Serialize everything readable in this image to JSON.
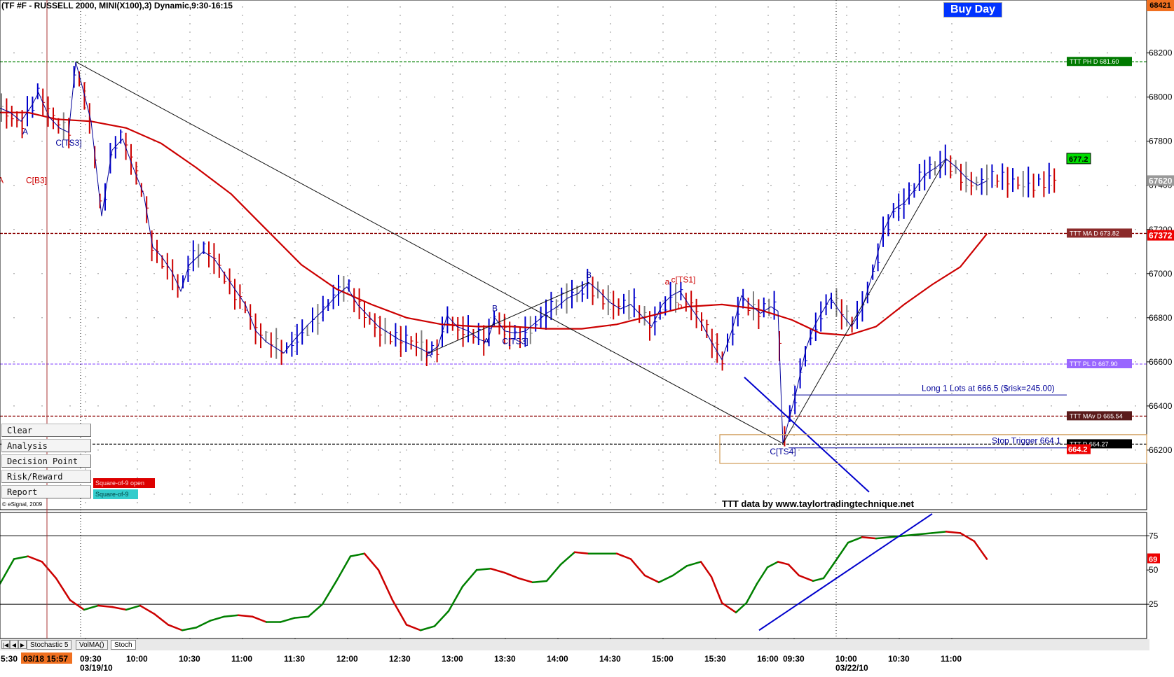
{
  "header": {
    "symbol_title": "(TF #F - RUSSELL 2000, MINI(X100),3) Dynamic,9:30-16:15",
    "buy_day": "Buy Day",
    "top_right_price": "68421",
    "credit": "TTT data by www.taylortradingtechnique.net",
    "copyright": "© eSignal, 2009"
  },
  "colors": {
    "ma_line": "#cc0000",
    "bar_up": "#0000cc",
    "bar_down": "#cc0000",
    "bar_neutral": "#808080",
    "ph_line": "#008000",
    "pl_line": "#9966ff",
    "ma_d_line": "#8b0000",
    "buy_day_bg": "#0033ff",
    "stoch_up": "#008000",
    "stoch_down": "#cc0000"
  },
  "price_axis": {
    "ticks": [
      "68200",
      "68000",
      "67800",
      "67620",
      "67400",
      "67200",
      "67000",
      "66800",
      "66600",
      "66400",
      "66200"
    ],
    "current_price": "67620",
    "current_price_2": "67372"
  },
  "levels": [
    {
      "label": "TTT PH D 681.60",
      "value": 681.6,
      "color": "#008000",
      "bg": "#007a00",
      "style": "dashed"
    },
    {
      "label": "TTT MA D 673.82",
      "value": 673.82,
      "color": "#8b0000",
      "bg": "#8b2a2a",
      "style": "dashed"
    },
    {
      "label": "TTT PL D 667.90",
      "value": 667.9,
      "color": "#9966ff",
      "bg": "#9966ff",
      "style": "dashed"
    },
    {
      "label": "TTT MAv D 665.54",
      "value": 665.54,
      "color": "#8b0000",
      "bg": "#5a1a1a",
      "style": "dashed"
    },
    {
      "label": "TTT D 664.27",
      "value": 664.27,
      "color": "#000000",
      "bg": "#000000",
      "style": "dashed"
    }
  ],
  "price_tags": {
    "green_tag": "677.2",
    "red_tag": "664.2"
  },
  "annotations": [
    {
      "text": "A",
      "color": "#cc0000",
      "x": 1,
      "y": 676.1
    },
    {
      "text": "C[B3]",
      "color": "#cc0000",
      "x": 52,
      "y": 676.1
    },
    {
      "text": "A",
      "color": "#000099",
      "x": 36,
      "y": 678.3
    },
    {
      "text": "C[TS3]",
      "color": "#000099",
      "x": 98,
      "y": 677.8
    },
    {
      "text": "A",
      "color": "#000099",
      "x": 612,
      "y": 668.2
    },
    {
      "text": "B",
      "color": "#000099",
      "x": 706,
      "y": 670.3
    },
    {
      "text": "A",
      "color": "#000099",
      "x": 694,
      "y": 668.8
    },
    {
      "text": "C[TS3]",
      "color": "#000099",
      "x": 735,
      "y": 668.8
    },
    {
      "text": "B",
      "color": "#000099",
      "x": 840,
      "y": 671.8
    },
    {
      "text": "a",
      "color": "#cc0000",
      "x": 952,
      "y": 671.5
    },
    {
      "text": "c[TS1]",
      "color": "#cc0000",
      "x": 975,
      "y": 671.6
    },
    {
      "text": "b",
      "color": "#cc0000",
      "x": 970,
      "y": 670.4
    },
    {
      "text": "C[TS4]",
      "color": "#000099",
      "x": 1117,
      "y": 663.8
    }
  ],
  "trade_notes": {
    "long_entry": "Long 1 Lots at 666.5 ($risk=245.00)",
    "stop_trigger": "Stop Trigger 664.1"
  },
  "buttons": [
    {
      "label": "Clear"
    },
    {
      "label": "Analysis"
    },
    {
      "label": "Decision Point"
    },
    {
      "label": "Risk/Reward"
    },
    {
      "label": "Report"
    }
  ],
  "square_tags": {
    "sq9_open": "Square-of-9 open",
    "sq9": "Square-of-9"
  },
  "stoch_axis": {
    "ticks": [
      "75",
      "50",
      "25"
    ],
    "current": "69"
  },
  "tabs": [
    {
      "label": "Stochastic 5"
    },
    {
      "label": "VolMA()"
    },
    {
      "label": "Stoch"
    }
  ],
  "time_axis": {
    "left_partial": "5:30",
    "cursor_time": "03/18 15:57",
    "date1": "03/19/10",
    "date2": "03/22/10"
  },
  "chart_data": {
    "type": "bar",
    "title": "(TF #F - RUSSELL 2000, MINI(X100),3) Dynamic,9:30-16:15",
    "x_ticks": [
      {
        "label": "09:30",
        "x": 122
      },
      {
        "label": "10:00",
        "x": 196
      },
      {
        "label": "10:30",
        "x": 271
      },
      {
        "label": "11:00",
        "x": 346
      },
      {
        "label": "11:30",
        "x": 421
      },
      {
        "label": "12:00",
        "x": 496
      },
      {
        "label": "12:30",
        "x": 571
      },
      {
        "label": "13:00",
        "x": 646
      },
      {
        "label": "13:30",
        "x": 721
      },
      {
        "label": "14:00",
        "x": 796
      },
      {
        "label": "14:30",
        "x": 871
      },
      {
        "label": "15:00",
        "x": 946
      },
      {
        "label": "15:30",
        "x": 1021
      },
      {
        "label": "16:00",
        "x": 1096
      },
      {
        "label": "09:30",
        "x": 1133
      },
      {
        "label": "10:00",
        "x": 1208
      },
      {
        "label": "10:30",
        "x": 1283
      },
      {
        "label": "11:00",
        "x": 1358
      }
    ],
    "ylim": [
      661.3,
      684.4
    ],
    "price_path": [
      [
        0,
        679.5
      ],
      [
        15,
        679.3
      ],
      [
        30,
        678.9
      ],
      [
        45,
        679.6
      ],
      [
        55,
        680.2
      ],
      [
        70,
        679.1
      ],
      [
        85,
        678.6
      ],
      [
        98,
        678.4
      ],
      [
        108,
        681.6
      ],
      [
        118,
        680.4
      ],
      [
        130,
        678.9
      ],
      [
        145,
        674.6
      ],
      [
        160,
        677.6
      ],
      [
        175,
        678.1
      ],
      [
        190,
        676.8
      ],
      [
        205,
        675.6
      ],
      [
        218,
        673.2
      ],
      [
        230,
        672.8
      ],
      [
        245,
        672.1
      ],
      [
        258,
        671.2
      ],
      [
        270,
        672.4
      ],
      [
        290,
        673.0
      ],
      [
        305,
        672.7
      ],
      [
        320,
        672.0
      ],
      [
        335,
        671.3
      ],
      [
        350,
        670.6
      ],
      [
        365,
        669.4
      ],
      [
        380,
        668.9
      ],
      [
        395,
        668.6
      ],
      [
        405,
        668.4
      ],
      [
        420,
        669.0
      ],
      [
        440,
        669.7
      ],
      [
        460,
        670.3
      ],
      [
        480,
        671.0
      ],
      [
        495,
        671.4
      ],
      [
        510,
        670.6
      ],
      [
        525,
        670.1
      ],
      [
        540,
        669.6
      ],
      [
        555,
        669.3
      ],
      [
        570,
        669.0
      ],
      [
        585,
        668.8
      ],
      [
        600,
        668.6
      ],
      [
        612,
        668.4
      ],
      [
        625,
        668.7
      ],
      [
        638,
        670.1
      ],
      [
        652,
        669.6
      ],
      [
        668,
        669.4
      ],
      [
        685,
        669.0
      ],
      [
        695,
        668.9
      ],
      [
        706,
        670.0
      ],
      [
        720,
        669.4
      ],
      [
        735,
        669.3
      ],
      [
        750,
        669.4
      ],
      [
        765,
        669.8
      ],
      [
        780,
        670.2
      ],
      [
        795,
        670.5
      ],
      [
        810,
        670.9
      ],
      [
        825,
        671.1
      ],
      [
        840,
        671.6
      ],
      [
        855,
        671.2
      ],
      [
        870,
        670.7
      ],
      [
        885,
        670.4
      ],
      [
        900,
        670.6
      ],
      [
        915,
        670.1
      ],
      [
        930,
        669.6
      ],
      [
        945,
        670.6
      ],
      [
        958,
        671.0
      ],
      [
        970,
        671.2
      ],
      [
        985,
        670.5
      ],
      [
        1000,
        669.8
      ],
      [
        1015,
        668.9
      ],
      [
        1030,
        668.1
      ],
      [
        1045,
        669.5
      ],
      [
        1058,
        671.0
      ],
      [
        1070,
        670.6
      ],
      [
        1085,
        670.2
      ],
      [
        1100,
        670.5
      ],
      [
        1110,
        670.3
      ],
      [
        1117,
        664.3
      ],
      [
        1125,
        665.3
      ],
      [
        1135,
        666.5
      ],
      [
        1150,
        668.6
      ],
      [
        1160,
        669.5
      ],
      [
        1170,
        670.1
      ],
      [
        1185,
        670.9
      ],
      [
        1200,
        670.2
      ],
      [
        1215,
        669.6
      ],
      [
        1230,
        670.4
      ],
      [
        1245,
        672.0
      ],
      [
        1260,
        673.9
      ],
      [
        1275,
        674.9
      ],
      [
        1290,
        675.2
      ],
      [
        1305,
        675.8
      ],
      [
        1320,
        676.5
      ],
      [
        1335,
        676.8
      ],
      [
        1350,
        677.2
      ],
      [
        1365,
        676.8
      ],
      [
        1380,
        676.3
      ],
      [
        1395,
        676.0
      ],
      [
        1408,
        676.2
      ]
    ],
    "ma_path": [
      [
        0,
        679.3
      ],
      [
        40,
        679.3
      ],
      [
        80,
        679.0
      ],
      [
        130,
        678.9
      ],
      [
        180,
        678.6
      ],
      [
        230,
        677.9
      ],
      [
        280,
        676.8
      ],
      [
        330,
        675.6
      ],
      [
        380,
        674.0
      ],
      [
        430,
        672.4
      ],
      [
        480,
        671.3
      ],
      [
        530,
        670.6
      ],
      [
        580,
        670.0
      ],
      [
        630,
        669.7
      ],
      [
        680,
        669.6
      ],
      [
        730,
        669.6
      ],
      [
        780,
        669.5
      ],
      [
        830,
        669.5
      ],
      [
        880,
        669.7
      ],
      [
        930,
        670.1
      ],
      [
        980,
        670.5
      ],
      [
        1030,
        670.6
      ],
      [
        1080,
        670.4
      ],
      [
        1130,
        669.9
      ],
      [
        1170,
        669.3
      ],
      [
        1210,
        669.2
      ],
      [
        1250,
        669.6
      ],
      [
        1290,
        670.6
      ],
      [
        1330,
        671.5
      ],
      [
        1370,
        672.3
      ],
      [
        1408,
        673.8
      ]
    ],
    "stoch": [
      [
        0,
        40
      ],
      [
        20,
        58
      ],
      [
        40,
        60
      ],
      [
        60,
        56
      ],
      [
        80,
        44
      ],
      [
        100,
        28
      ],
      [
        120,
        21
      ],
      [
        140,
        24
      ],
      [
        160,
        23
      ],
      [
        180,
        21
      ],
      [
        200,
        24
      ],
      [
        220,
        18
      ],
      [
        240,
        10
      ],
      [
        260,
        6
      ],
      [
        280,
        8
      ],
      [
        300,
        13
      ],
      [
        320,
        16
      ],
      [
        340,
        17
      ],
      [
        360,
        16
      ],
      [
        380,
        12
      ],
      [
        400,
        12
      ],
      [
        420,
        15
      ],
      [
        440,
        16
      ],
      [
        460,
        25
      ],
      [
        480,
        42
      ],
      [
        500,
        60
      ],
      [
        520,
        62
      ],
      [
        540,
        50
      ],
      [
        560,
        28
      ],
      [
        580,
        10
      ],
      [
        600,
        6
      ],
      [
        620,
        9
      ],
      [
        640,
        20
      ],
      [
        660,
        38
      ],
      [
        680,
        50
      ],
      [
        700,
        51
      ],
      [
        720,
        48
      ],
      [
        740,
        44
      ],
      [
        760,
        41
      ],
      [
        780,
        42
      ],
      [
        800,
        54
      ],
      [
        820,
        63
      ],
      [
        840,
        62
      ],
      [
        860,
        62
      ],
      [
        880,
        62
      ],
      [
        900,
        58
      ],
      [
        920,
        46
      ],
      [
        940,
        41
      ],
      [
        960,
        46
      ],
      [
        980,
        53
      ],
      [
        1000,
        56
      ],
      [
        1015,
        45
      ],
      [
        1030,
        26
      ],
      [
        1050,
        19
      ],
      [
        1065,
        26
      ],
      [
        1080,
        40
      ],
      [
        1095,
        52
      ],
      [
        1110,
        56
      ],
      [
        1125,
        54
      ],
      [
        1140,
        46
      ],
      [
        1160,
        42
      ],
      [
        1175,
        44
      ],
      [
        1190,
        55
      ],
      [
        1210,
        70
      ],
      [
        1230,
        74
      ],
      [
        1250,
        73
      ],
      [
        1270,
        74
      ],
      [
        1290,
        75
      ],
      [
        1310,
        76
      ],
      [
        1330,
        77
      ],
      [
        1350,
        78
      ],
      [
        1370,
        77
      ],
      [
        1390,
        71
      ],
      [
        1408,
        58
      ]
    ],
    "stoch_ylim": [
      0,
      92
    ]
  }
}
